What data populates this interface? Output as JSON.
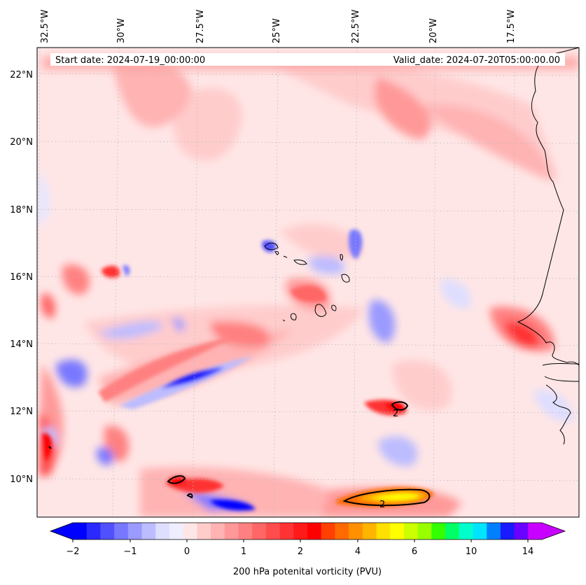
{
  "header": {
    "start_date": "Start date: 2024-07-19_00:00:00",
    "valid_date": "Valid_date: 2024-07-20T05:00:00.00"
  },
  "lon_labels": [
    "32.5°W",
    "30°W",
    "27.5°W",
    "25°W",
    "22.5°W",
    "20°W",
    "17.5°W"
  ],
  "lat_labels": [
    "22°N",
    "20°N",
    "18°N",
    "16°N",
    "14°N",
    "12°N",
    "10°N"
  ],
  "colorbar": {
    "title": "200 hPa potenital vorticity (PVU)",
    "tick_labels": [
      "−2",
      "−1",
      "0",
      "1",
      "2",
      "4",
      "6",
      "10",
      "14"
    ],
    "colors": [
      "#0000ff",
      "#2a2aff",
      "#5050ff",
      "#7878ff",
      "#9a9aff",
      "#bcbcff",
      "#dedeff",
      "#eeeeff",
      "#ffe6e6",
      "#ffcccc",
      "#ffb3b3",
      "#ff9999",
      "#ff8080",
      "#ff6666",
      "#ff4d4d",
      "#ff3333",
      "#ff1a1a",
      "#ff0000",
      "#ff4000",
      "#ff6a00",
      "#ff9000",
      "#ffb400",
      "#ffe000",
      "#ffff00",
      "#ccff00",
      "#99ff00",
      "#33ff00",
      "#00ff66",
      "#00ffcc",
      "#00e5ff",
      "#0080ff",
      "#1a1aff",
      "#6a00ff",
      "#c800ff"
    ]
  },
  "contour_labels": [
    "2",
    "2"
  ],
  "icons": [
    "coastline-africa",
    "cabo-verde-islands"
  ]
}
